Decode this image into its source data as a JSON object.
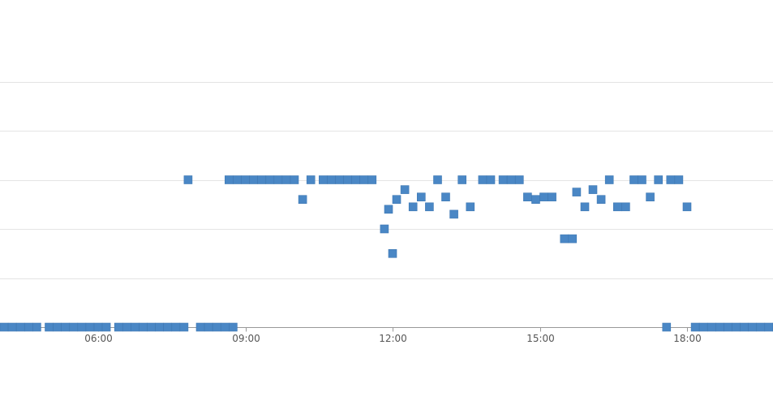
{
  "chart_data": {
    "type": "scatter",
    "title": "",
    "xlabel": "",
    "ylabel": "",
    "x_ticks": [
      "06:00",
      "09:00",
      "12:00",
      "15:00",
      "18:00"
    ],
    "x_range": [
      "04:00",
      "19:50"
    ],
    "y_range": [
      0,
      5
    ],
    "grid": true,
    "legend": "none",
    "marker": "square",
    "point_color": "#4a87c5",
    "series": [
      {
        "points": [
          [
            "04:05",
            0
          ],
          [
            "04:15",
            0
          ],
          [
            "04:25",
            0
          ],
          [
            "04:35",
            0
          ],
          [
            "04:45",
            0
          ],
          [
            "05:00",
            0
          ],
          [
            "05:10",
            0
          ],
          [
            "05:20",
            0
          ],
          [
            "05:30",
            0
          ],
          [
            "05:40",
            0
          ],
          [
            "05:50",
            0
          ],
          [
            "06:00",
            0
          ],
          [
            "06:10",
            0
          ],
          [
            "06:25",
            0
          ],
          [
            "06:35",
            0
          ],
          [
            "06:45",
            0
          ],
          [
            "06:55",
            0
          ],
          [
            "07:05",
            0
          ],
          [
            "07:15",
            0
          ],
          [
            "07:25",
            0
          ],
          [
            "07:35",
            0
          ],
          [
            "07:45",
            0
          ],
          [
            "08:05",
            0
          ],
          [
            "08:15",
            0
          ],
          [
            "08:25",
            0
          ],
          [
            "08:35",
            0
          ],
          [
            "08:45",
            0
          ],
          [
            "07:50",
            3
          ],
          [
            "08:40",
            3
          ],
          [
            "08:50",
            3
          ],
          [
            "09:00",
            3
          ],
          [
            "09:10",
            3
          ],
          [
            "09:20",
            3
          ],
          [
            "09:30",
            3
          ],
          [
            "09:40",
            3
          ],
          [
            "09:50",
            3
          ],
          [
            "10:00",
            3
          ],
          [
            "10:10",
            2.6
          ],
          [
            "10:20",
            3
          ],
          [
            "10:35",
            3
          ],
          [
            "10:45",
            3
          ],
          [
            "10:55",
            3
          ],
          [
            "11:05",
            3
          ],
          [
            "11:15",
            3
          ],
          [
            "11:25",
            3
          ],
          [
            "11:35",
            3
          ],
          [
            "11:50",
            2
          ],
          [
            "12:00",
            1.5
          ],
          [
            "11:55",
            2.4
          ],
          [
            "12:05",
            2.6
          ],
          [
            "12:15",
            2.8
          ],
          [
            "12:25",
            2.45
          ],
          [
            "12:35",
            2.65
          ],
          [
            "12:45",
            2.45
          ],
          [
            "12:55",
            3
          ],
          [
            "13:05",
            2.65
          ],
          [
            "13:15",
            2.3
          ],
          [
            "13:25",
            3
          ],
          [
            "13:35",
            2.45
          ],
          [
            "13:50",
            3
          ],
          [
            "14:00",
            3
          ],
          [
            "14:15",
            3
          ],
          [
            "14:25",
            3
          ],
          [
            "14:35",
            3
          ],
          [
            "14:45",
            2.65
          ],
          [
            "14:55",
            2.6
          ],
          [
            "15:05",
            2.65
          ],
          [
            "15:15",
            2.65
          ],
          [
            "15:30",
            1.8
          ],
          [
            "15:40",
            1.8
          ],
          [
            "15:45",
            2.75
          ],
          [
            "15:55",
            2.45
          ],
          [
            "16:05",
            2.8
          ],
          [
            "16:15",
            2.6
          ],
          [
            "16:25",
            3
          ],
          [
            "16:35",
            2.45
          ],
          [
            "16:45",
            2.45
          ],
          [
            "16:55",
            3
          ],
          [
            "17:05",
            3
          ],
          [
            "17:15",
            2.65
          ],
          [
            "17:25",
            3
          ],
          [
            "17:40",
            3
          ],
          [
            "17:50",
            3
          ],
          [
            "18:00",
            2.45
          ],
          [
            "17:35",
            0
          ],
          [
            "18:10",
            0
          ],
          [
            "18:20",
            0
          ],
          [
            "18:30",
            0
          ],
          [
            "18:40",
            0
          ],
          [
            "18:50",
            0
          ],
          [
            "19:00",
            0
          ],
          [
            "19:10",
            0
          ],
          [
            "19:20",
            0
          ],
          [
            "19:30",
            0
          ],
          [
            "19:40",
            0
          ],
          [
            "19:50",
            0
          ]
        ]
      }
    ]
  }
}
